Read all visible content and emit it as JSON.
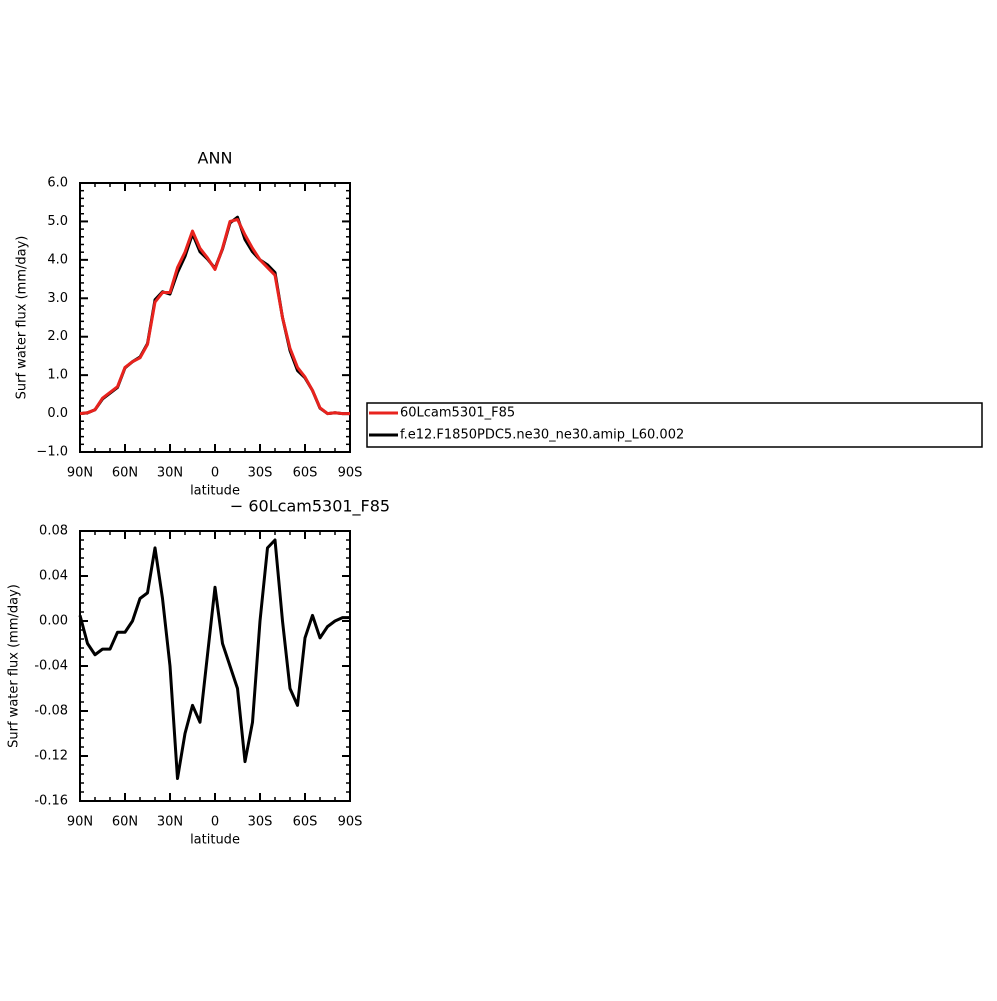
{
  "chart_data": [
    {
      "type": "line",
      "title": "ANN",
      "ylabel": "Surf water flux (mm/day)",
      "xlabel": "latitude",
      "x": [
        90,
        85,
        80,
        75,
        70,
        65,
        60,
        55,
        50,
        45,
        40,
        35,
        30,
        25,
        20,
        15,
        10,
        5,
        0,
        -5,
        -10,
        -15,
        -20,
        -25,
        -30,
        -35,
        -40,
        -45,
        -50,
        -55,
        -60,
        -65,
        -70,
        -75,
        -80,
        -85,
        -90
      ],
      "series": [
        {
          "name": "60Lcam5301_F85",
          "color": "#e8231e",
          "values": [
            0.0,
            0.02,
            0.1,
            0.4,
            0.55,
            0.7,
            1.2,
            1.35,
            1.45,
            1.8,
            2.9,
            3.15,
            3.15,
            3.8,
            4.2,
            4.75,
            4.3,
            4.05,
            3.75,
            4.3,
            5.0,
            5.05,
            4.65,
            4.3,
            4.0,
            3.8,
            3.6,
            2.5,
            1.7,
            1.2,
            0.95,
            0.6,
            0.15,
            0.0,
            0.02,
            0.0,
            0.0
          ]
        },
        {
          "name": "f.e12.F1850PDC5.ne30_ne30.amip_L60.002",
          "color": "#000000",
          "values": [
            0.0,
            0.02,
            0.1,
            0.38,
            0.53,
            0.68,
            1.19,
            1.35,
            1.47,
            1.82,
            2.96,
            3.17,
            3.11,
            3.67,
            4.09,
            4.68,
            4.21,
            4.02,
            3.78,
            4.28,
            4.96,
            5.11,
            4.53,
            4.21,
            4.0,
            3.87,
            3.67,
            2.5,
            1.64,
            1.12,
            0.93,
            0.6,
            0.14,
            0.0,
            0.02,
            0.0,
            0.0
          ]
        }
      ],
      "xlim": [
        90,
        -90
      ],
      "xticks": [
        {
          "value": 90,
          "label": "90N"
        },
        {
          "value": 60,
          "label": "60N"
        },
        {
          "value": 30,
          "label": "30N"
        },
        0,
        {
          "value": -30,
          "label": "30S"
        },
        {
          "value": -60,
          "label": "60S"
        },
        {
          "value": -90,
          "label": "90S"
        }
      ],
      "ylim": [
        -1,
        6
      ],
      "yticks": [
        {
          "value": -1,
          "label": "−1.0"
        },
        {
          "value": 0,
          "label": "0.0"
        },
        {
          "value": 1,
          "label": "1.0"
        },
        {
          "value": 2,
          "label": "2.0"
        },
        {
          "value": 3,
          "label": "3.0"
        },
        {
          "value": 4,
          "label": "4.0"
        },
        {
          "value": 5,
          "label": "5.0"
        },
        {
          "value": 6,
          "label": "6.0"
        }
      ]
    },
    {
      "type": "line",
      "title": "− 60Lcam5301_F85",
      "ylabel": "Surf water flux (mm/day)",
      "xlabel": "latitude",
      "x": [
        90,
        85,
        80,
        75,
        70,
        65,
        60,
        55,
        50,
        45,
        40,
        35,
        30,
        25,
        20,
        15,
        10,
        5,
        0,
        -5,
        -10,
        -15,
        -20,
        -25,
        -30,
        -35,
        -40,
        -45,
        -50,
        -55,
        -60,
        -65,
        -70,
        -75,
        -80,
        -85,
        -90
      ],
      "color": "#000000",
      "values": [
        0.005,
        -0.02,
        -0.03,
        -0.025,
        -0.025,
        -0.01,
        -0.01,
        0.0,
        0.02,
        0.025,
        0.065,
        0.02,
        -0.04,
        -0.14,
        -0.1,
        -0.075,
        -0.09,
        -0.03,
        0.03,
        -0.02,
        -0.04,
        -0.06,
        -0.125,
        -0.09,
        0.0,
        0.065,
        0.072,
        0.0,
        -0.06,
        -0.075,
        -0.015,
        0.005,
        -0.015,
        -0.005,
        0.0,
        0.003,
        0.003
      ],
      "xlim": [
        90,
        -90
      ],
      "xticks": [
        {
          "value": 90,
          "label": "90N"
        },
        {
          "value": 60,
          "label": "60N"
        },
        {
          "value": 30,
          "label": "30N"
        },
        0,
        {
          "value": -30,
          "label": "30S"
        },
        {
          "value": -60,
          "label": "60S"
        },
        {
          "value": -90,
          "label": "90S"
        }
      ],
      "ylim": [
        -0.16,
        0.08
      ],
      "yticks": [
        -0.16,
        -0.12,
        -0.08,
        -0.04,
        {
          "value": 0,
          "label": "0.00"
        },
        0.04,
        0.08
      ]
    }
  ]
}
